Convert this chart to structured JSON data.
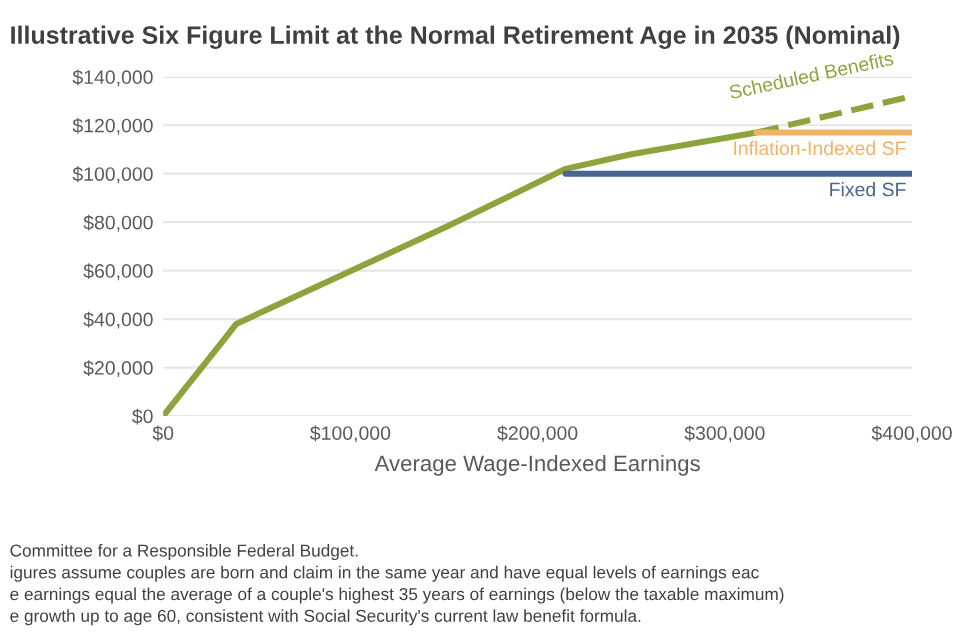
{
  "chart_data": {
    "type": "line",
    "title": "Illustrative Six Figure Limit at the Normal Retirement Age in 2035 (Nominal)",
    "xlabel": "Average Wage-Indexed Earnings",
    "series": [
      {
        "color": "#8da43c",
        "line_style": "solid",
        "x": [
          0,
          33000,
          39000,
          151000,
          215000,
          250000,
          317000
        ],
        "values": [
          0,
          32000,
          38000,
          78000,
          102000,
          108000,
          117000
        ]
      },
      {
        "name": "Scheduled Benefits",
        "color": "#8da43c",
        "line_style": "dashed",
        "x": [
          317000,
          400000
        ],
        "values": [
          117000,
          132000
        ]
      },
      {
        "name": "Inflation-Indexed SF",
        "color": "#f0b462",
        "line_style": "solid",
        "x": [
          317000,
          400000
        ],
        "values": [
          117000,
          117000
        ]
      },
      {
        "name": "Fixed SF",
        "color": "#4a6590",
        "line_style": "solid",
        "x": [
          215000,
          400000
        ],
        "values": [
          100000,
          100000
        ]
      }
    ],
    "xlim": [
      0,
      400000
    ],
    "ylim": [
      0,
      140000
    ],
    "xticks": [
      {
        "value": 0,
        "label": "$0"
      },
      {
        "value": 100000,
        "label": "$100,000"
      },
      {
        "value": 200000,
        "label": "$200,000"
      },
      {
        "value": 300000,
        "label": "$300,000"
      },
      {
        "value": 400000,
        "label": "$400,000"
      }
    ],
    "yticks": [
      {
        "value": 0,
        "label": "$0"
      },
      {
        "value": 20000,
        "label": "$20,000"
      },
      {
        "value": 40000,
        "label": "$40,000"
      },
      {
        "value": 60000,
        "label": "$60,000"
      },
      {
        "value": 80000,
        "label": "$80,000"
      },
      {
        "value": 100000,
        "label": "$100,000"
      },
      {
        "value": 120000,
        "label": "$120,000"
      },
      {
        "value": 140000,
        "label": "$140,000"
      }
    ],
    "grid": "y",
    "legend": false,
    "annotations": [
      "Committee for a Responsible Federal Budget.",
      "igures assume couples are born and claim in the same year and have equal levels of earnings eac",
      "e earnings equal the average of a couple's highest 35 years of earnings (below the taxable maximum)",
      "e growth up to age 60, consistent with Social Security's current law benefit formula."
    ]
  }
}
